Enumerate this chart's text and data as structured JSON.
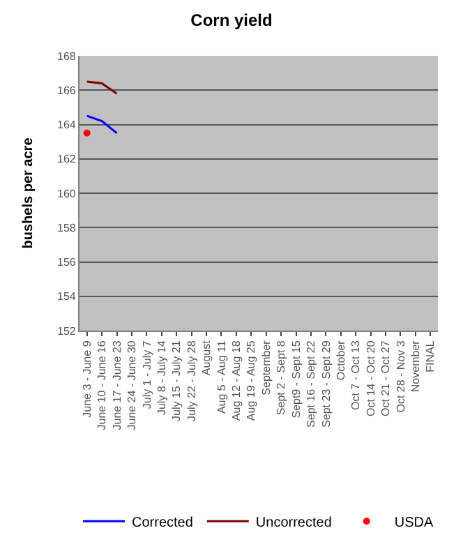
{
  "chart_data": {
    "type": "line",
    "title": "Corn yield",
    "ylabel": "bushels per acre",
    "categories": [
      "June 3 - June 9",
      "June 10 - June 16",
      "June 17 - June 23",
      "June 24 - June 30",
      "July 1 - July 7",
      "July 8 - July 14",
      "July 15 - July 21",
      "July 22 - July 28",
      "August",
      "Aug 5 - Aug 11",
      "Aug 12 - Aug 18",
      "Aug 19 - Aug 25",
      "September",
      "Sept 2 - Sept 8",
      "Sept9 - Sept 15",
      "Sept 16 - Sept 22",
      "Sept 23 - Sept 29",
      "October",
      "Oct 7 - Oct 13",
      "Oct 14 - Oct 20",
      "Oct 21 - Oct 27",
      "Oct 28 - Nov 3",
      "November",
      "FINAL"
    ],
    "series": [
      {
        "name": "Corrected",
        "color": "#0000ff",
        "values": [
          164.5,
          164.2,
          163.5,
          null,
          null,
          null,
          null,
          null,
          null,
          null,
          null,
          null,
          null,
          null,
          null,
          null,
          null,
          null,
          null,
          null,
          null,
          null,
          null,
          null
        ]
      },
      {
        "name": "Uncorrected",
        "color": "#800000",
        "values": [
          166.5,
          166.4,
          165.8,
          null,
          null,
          null,
          null,
          null,
          null,
          null,
          null,
          null,
          null,
          null,
          null,
          null,
          null,
          null,
          null,
          null,
          null,
          null,
          null,
          null
        ]
      },
      {
        "name": "USDA",
        "color": "#ff0000",
        "type": "scatter",
        "marker": "circle",
        "values": [
          163.5,
          null,
          null,
          null,
          null,
          null,
          null,
          null,
          null,
          null,
          null,
          null,
          null,
          null,
          null,
          null,
          null,
          null,
          null,
          null,
          null,
          null,
          null,
          null
        ]
      }
    ],
    "ylim": [
      152,
      168
    ],
    "yticks": [
      152,
      154,
      156,
      158,
      160,
      162,
      164,
      166,
      168
    ],
    "grid": "y",
    "legend": "bottom",
    "marker": "none"
  }
}
